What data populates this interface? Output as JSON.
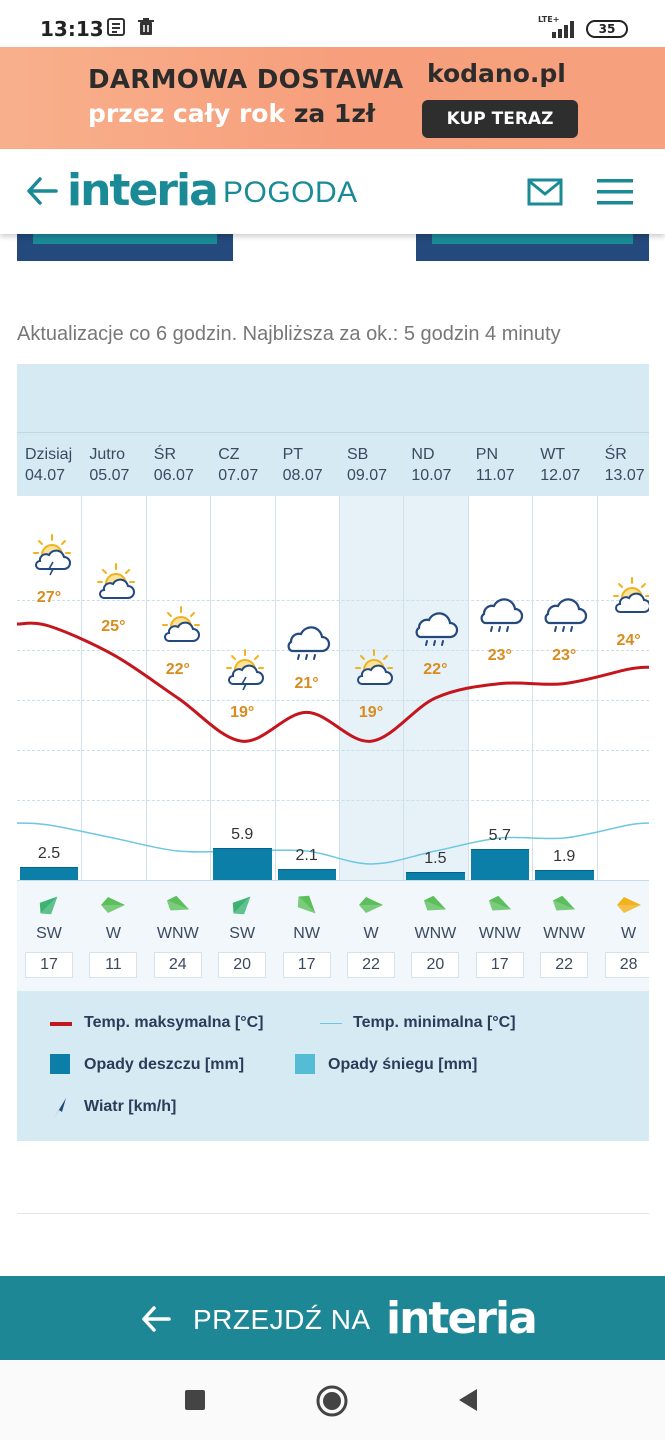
{
  "status_bar": {
    "time": "13:13",
    "network": "LTE+",
    "battery": "35"
  },
  "ad": {
    "line1": "DARMOWA DOSTAWA",
    "line2_light": "przez cały rok",
    "line2_dark": "za 1zł",
    "brand": "kodano.pl",
    "cta": "KUP TERAZ"
  },
  "header": {
    "logo": "interia",
    "section": "POGODA"
  },
  "update_text": "Aktualizacje co 6 godzin. Najbliższa za ok.: 5 godzin 4 minuty",
  "days": [
    {
      "name": "Dzisiaj",
      "date": "04.07",
      "max": "27°",
      "icon": "sun-cloud-storm-icon",
      "rain": "2.5",
      "wind_dir": "SW",
      "wind_speed": "17"
    },
    {
      "name": "Jutro",
      "date": "05.07",
      "max": "25°",
      "icon": "sun-cloud-icon",
      "rain": "",
      "wind_dir": "W",
      "wind_speed": "11"
    },
    {
      "name": "ŚR",
      "date": "06.07",
      "max": "22°",
      "icon": "sun-cloud-icon",
      "rain": "",
      "wind_dir": "WNW",
      "wind_speed": "24"
    },
    {
      "name": "CZ",
      "date": "07.07",
      "max": "19°",
      "icon": "sun-cloud-storm-icon",
      "rain": "5.9",
      "wind_dir": "SW",
      "wind_speed": "20"
    },
    {
      "name": "PT",
      "date": "08.07",
      "max": "21°",
      "icon": "cloud-rain-icon",
      "rain": "2.1",
      "wind_dir": "NW",
      "wind_speed": "17"
    },
    {
      "name": "SB",
      "date": "09.07",
      "max": "19°",
      "icon": "sun-cloud-icon",
      "rain": "",
      "wind_dir": "W",
      "wind_speed": "22"
    },
    {
      "name": "ND",
      "date": "10.07",
      "max": "22°",
      "icon": "cloud-rain-icon",
      "rain": "1.5",
      "wind_dir": "WNW",
      "wind_speed": "20"
    },
    {
      "name": "PN",
      "date": "11.07",
      "max": "23°",
      "icon": "cloud-rain-icon",
      "rain": "5.7",
      "wind_dir": "WNW",
      "wind_speed": "17"
    },
    {
      "name": "WT",
      "date": "12.07",
      "max": "23°",
      "icon": "cloud-rain-icon",
      "rain": "1.9",
      "wind_dir": "WNW",
      "wind_speed": "22"
    },
    {
      "name": "ŚR",
      "date": "13.07",
      "max": "24°",
      "icon": "sun-cloud-icon",
      "rain": "",
      "wind_dir": "W",
      "wind_speed": "28"
    }
  ],
  "chart_data": {
    "type": "line",
    "categories": [
      "04.07",
      "05.07",
      "06.07",
      "07.07",
      "08.07",
      "09.07",
      "10.07",
      "11.07",
      "12.07",
      "13.07"
    ],
    "series": [
      {
        "name": "Temp. maksymalna [°C]",
        "values": [
          27,
          25,
          22,
          19,
          21,
          19,
          22,
          23,
          23,
          24
        ],
        "color": "#c4161c"
      },
      {
        "name": "Temp. minimalna [°C]",
        "values": [
          15,
          14,
          13,
          13,
          13,
          12,
          13,
          14,
          14,
          15
        ],
        "color": "#6ec6e3"
      },
      {
        "name": "Opady deszczu [mm]",
        "values": [
          2.5,
          0,
          0,
          5.9,
          2.1,
          0,
          1.5,
          5.7,
          1.9,
          0
        ],
        "color": "#0b7fa8"
      },
      {
        "name": "Wiatr [km/h]",
        "values": [
          17,
          11,
          24,
          20,
          17,
          22,
          20,
          17,
          22,
          28
        ]
      }
    ]
  },
  "legend": {
    "tmax": "Temp. maksymalna [°C]",
    "tmin": "Temp. minimalna [°C]",
    "rain": "Opady deszczu [mm]",
    "snow": "Opady śniegu [mm]",
    "wind": "Wiatr [km/h]"
  },
  "footer": {
    "text": "PRZEJDŹ NA",
    "logo": "interia"
  },
  "colors": {
    "teal": "#1a8a96",
    "navy": "#24497c",
    "chart_bg": "#d6eaf3",
    "tmax": "#c4161c",
    "rain": "#0b7fa8",
    "temp_label": "#d98b1d"
  }
}
